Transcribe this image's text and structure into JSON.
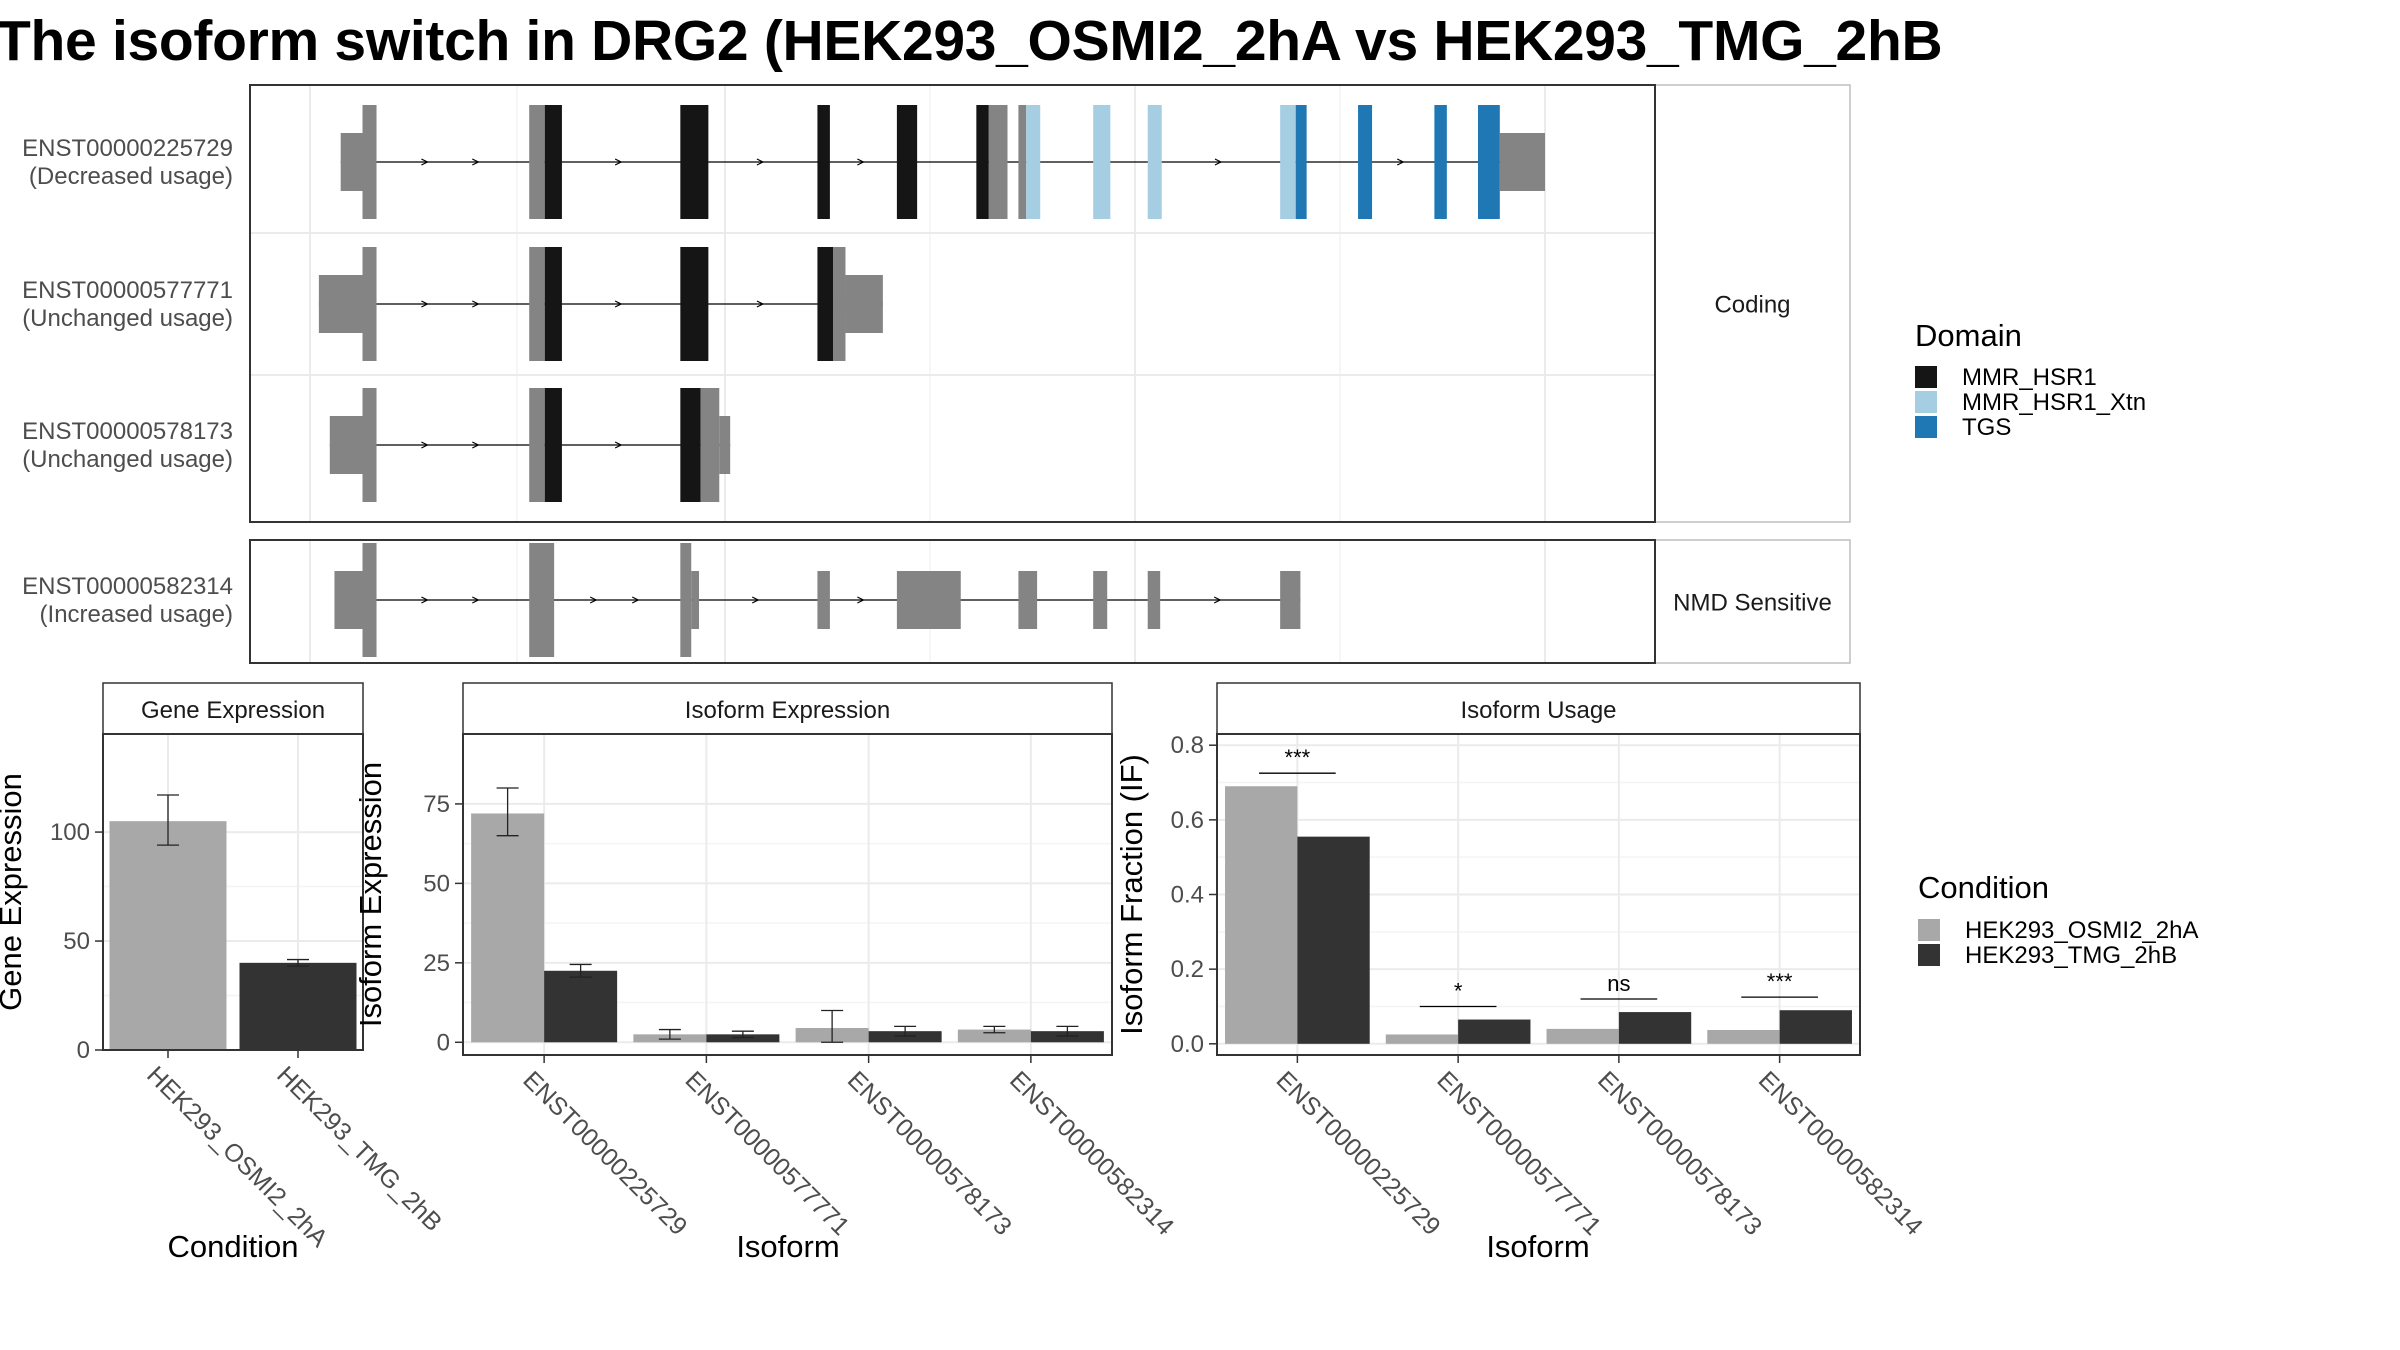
{
  "title": "The isoform switch in DRG2 (HEK293_OSMI2_2hA vs HEK293_TMG_2hB",
  "colors": {
    "MMR_HSR1": "#151515",
    "MMR_HSR1_Xtn": "#a6cee3",
    "TGS": "#1f78b4",
    "no_domain": "#848484",
    "condition_a": "#a8a8a8",
    "condition_b": "#333333"
  },
  "structure": {
    "facets": [
      "Coding",
      "NMD Sensitive"
    ],
    "transcripts": [
      {
        "id": "ENST00000225729",
        "usage": "(Decreased usage)",
        "facet": "Coding",
        "exons": [
          [
            12,
            26,
            "utr"
          ],
          [
            26,
            35,
            "none"
          ],
          [
            133,
            143,
            "none"
          ],
          [
            143,
            154,
            "MMR_HSR1"
          ],
          [
            230,
            248,
            "MMR_HSR1"
          ],
          [
            318,
            326,
            "MMR_HSR1"
          ],
          [
            369,
            382,
            "MMR_HSR1"
          ],
          [
            420,
            428,
            "MMR_HSR1"
          ],
          [
            428,
            440,
            "none"
          ],
          [
            447,
            452,
            "none"
          ],
          [
            452,
            461,
            "MMR_HSR1_Xtn"
          ],
          [
            495,
            506,
            "MMR_HSR1_Xtn"
          ],
          [
            530,
            539,
            "MMR_HSR1_Xtn"
          ],
          [
            615,
            625,
            "MMR_HSR1_Xtn"
          ],
          [
            625,
            632,
            "TGS"
          ],
          [
            665,
            674,
            "TGS"
          ],
          [
            714,
            722,
            "TGS"
          ],
          [
            742,
            756,
            "TGS"
          ],
          [
            756,
            785,
            "utr"
          ]
        ]
      },
      {
        "id": "ENST00000577771",
        "usage": "(Unchanged usage)",
        "facet": "Coding",
        "exons": [
          [
            -2,
            26,
            "utr"
          ],
          [
            26,
            35,
            "none"
          ],
          [
            133,
            143,
            "none"
          ],
          [
            143,
            154,
            "MMR_HSR1"
          ],
          [
            230,
            248,
            "MMR_HSR1"
          ],
          [
            318,
            328,
            "MMR_HSR1"
          ],
          [
            328,
            336,
            "none"
          ],
          [
            336,
            360,
            "utr"
          ]
        ]
      },
      {
        "id": "ENST00000578173",
        "usage": "(Unchanged usage)",
        "facet": "Coding",
        "exons": [
          [
            5,
            26,
            "utr"
          ],
          [
            26,
            35,
            "none"
          ],
          [
            133,
            143,
            "none"
          ],
          [
            143,
            154,
            "MMR_HSR1"
          ],
          [
            230,
            243,
            "MMR_HSR1"
          ],
          [
            243,
            255,
            "none"
          ],
          [
            255,
            262,
            "utr"
          ]
        ]
      },
      {
        "id": "ENST00000582314",
        "usage": "(Increased usage)",
        "facet": "NMD Sensitive",
        "exons": [
          [
            8,
            26,
            "utr"
          ],
          [
            26,
            35,
            "none"
          ],
          [
            133,
            149,
            "none"
          ],
          [
            230,
            237,
            "none"
          ],
          [
            237,
            242,
            "utr"
          ],
          [
            318,
            326,
            "utr"
          ],
          [
            369,
            410,
            "utr"
          ],
          [
            447,
            459,
            "utr"
          ],
          [
            495,
            504,
            "utr"
          ],
          [
            530,
            538,
            "utr"
          ],
          [
            615,
            628,
            "utr"
          ]
        ]
      }
    ]
  },
  "legend_domain": {
    "title": "Domain",
    "items": [
      "MMR_HSR1",
      "MMR_HSR1_Xtn",
      "TGS"
    ]
  },
  "legend_condition": {
    "title": "Condition",
    "items": [
      "HEK293_OSMI2_2hA",
      "HEK293_TMG_2hB"
    ]
  },
  "chart_data": [
    {
      "type": "bar",
      "title": "Gene Expression",
      "xlabel": "Condition",
      "ylabel": "Gene Expression",
      "categories": [
        "HEK293_OSMI2_2hA",
        "HEK293_TMG_2hB"
      ],
      "values": [
        105,
        40
      ],
      "error_low": [
        94,
        38.5
      ],
      "error_high": [
        117,
        41.5
      ],
      "ylim": [
        0,
        145
      ],
      "yticks": [
        0,
        50,
        100
      ]
    },
    {
      "type": "bar",
      "title": "Isoform Expression",
      "xlabel": "Isoform",
      "ylabel": "Isoform Expression",
      "categories": [
        "ENST00000225729",
        "ENST00000577771",
        "ENST00000578173",
        "ENST00000582314"
      ],
      "series": [
        {
          "name": "HEK293_OSMI2_2hA",
          "values": [
            72,
            2.5,
            4.5,
            4
          ],
          "error_low": [
            65,
            1,
            0,
            3
          ],
          "error_high": [
            80,
            4,
            10,
            5
          ]
        },
        {
          "name": "HEK293_TMG_2hB",
          "values": [
            22.5,
            2.5,
            3.5,
            3.5
          ],
          "error_low": [
            20.5,
            1.5,
            2,
            2
          ],
          "error_high": [
            24.5,
            3.5,
            5,
            5
          ]
        }
      ],
      "ylim": [
        -4,
        97
      ],
      "yticks": [
        0,
        25,
        50,
        75
      ]
    },
    {
      "type": "bar",
      "title": "Isoform Usage",
      "xlabel": "Isoform",
      "ylabel": "Isoform Fraction (IF)",
      "categories": [
        "ENST00000225729",
        "ENST00000577771",
        "ENST00000578173",
        "ENST00000582314"
      ],
      "series": [
        {
          "name": "HEK293_OSMI2_2hA",
          "values": [
            0.69,
            0.025,
            0.04,
            0.037
          ]
        },
        {
          "name": "HEK293_TMG_2hB",
          "values": [
            0.555,
            0.065,
            0.085,
            0.09
          ]
        }
      ],
      "significance": [
        "***",
        "*",
        "ns",
        "***"
      ],
      "sig_line": [
        0.725,
        0.1,
        0.12,
        0.125
      ],
      "ylim": [
        -0.03,
        0.83
      ],
      "yticks": [
        0.0,
        0.2,
        0.4,
        0.6,
        0.8
      ],
      "ytick_labels": [
        "0.0",
        "0.2",
        "0.4",
        "0.6",
        "0.8"
      ]
    }
  ]
}
